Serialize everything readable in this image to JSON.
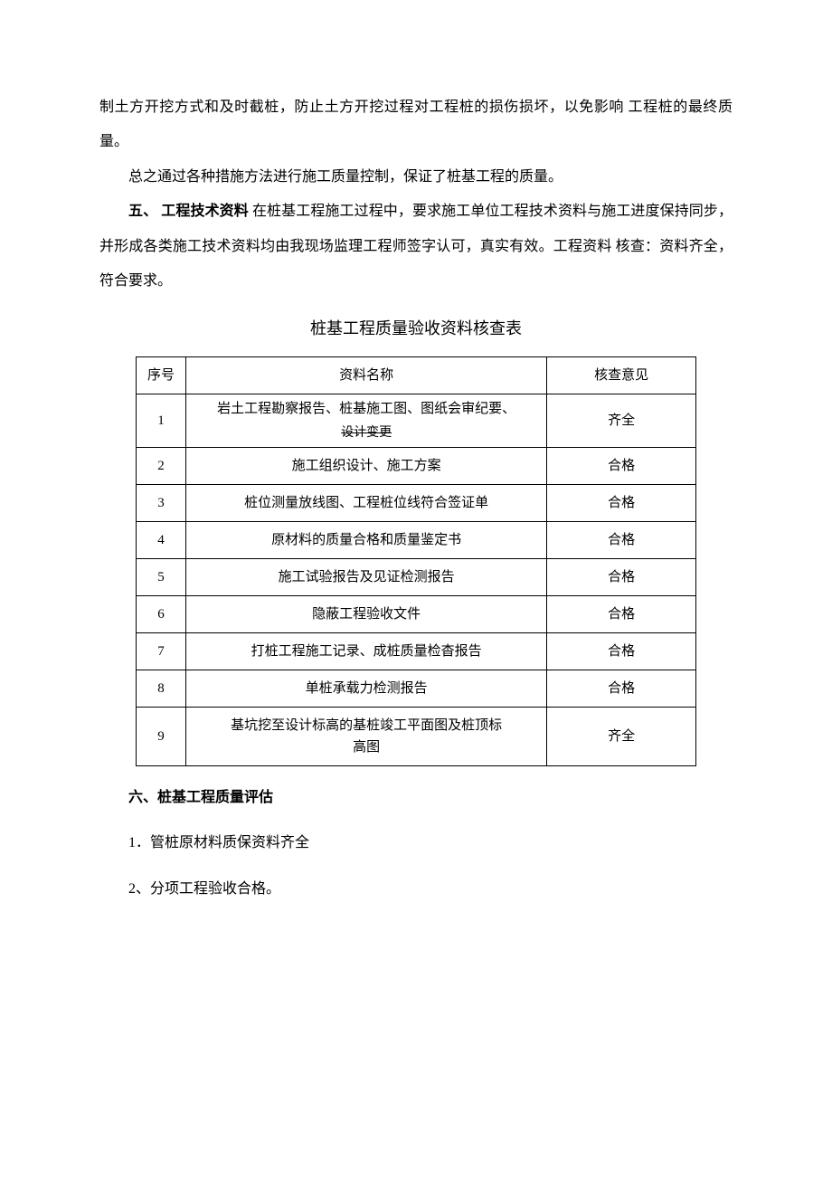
{
  "paragraphs": {
    "p1": "制土方开挖方式和及时截桩，防止土方开挖过程对工程桩的损伤损坏，以免影响 工程桩的最终质量。",
    "p2": "总之通过各种措施方法进行施工质量控制，保证了桩基工程的质量。",
    "p3_label": "五、  工程技术资料",
    "p3_rest": " 在桩基工程施工过程中，要求施工单位工程技术资料与施工进度保持同步， 并形成各类施工技术资料均由我现场监理工程师签字认可，真实有效。工程资料 核查：资料齐全，符合要求。"
  },
  "table": {
    "title": "桩基工程质量验收资料核查表",
    "headers": {
      "seq": "序号",
      "name": "资料名称",
      "opinion": "核查意见"
    },
    "rows": [
      {
        "seq": "1",
        "name_top": "岩土工程勘察报告、桩基施工图、图纸会审纪要、",
        "name_bottom": "设计变更",
        "opinion": "齐全"
      },
      {
        "seq": "2",
        "name": "施工组织设计、施工方案",
        "opinion": "合格"
      },
      {
        "seq": "3",
        "name": "桩位测量放线图、工程桩位线符合签证单",
        "opinion": "合格"
      },
      {
        "seq": "4",
        "name": "原材料的质量合格和质量鉴定书",
        "opinion": "合格"
      },
      {
        "seq": "5",
        "name": "施工试验报告及见证检测报告",
        "opinion": "合格"
      },
      {
        "seq": "6",
        "name": "隐蔽工程验收文件",
        "opinion": "合格"
      },
      {
        "seq": "7",
        "name": "打桩工程施工记录、成桩质量检杳报告",
        "opinion": "合格"
      },
      {
        "seq": "8",
        "name": "单桩承载力检测报告",
        "opinion": "合格"
      },
      {
        "seq": "9",
        "name_top": "基坑挖至设计标高的基桩竣工平面图及桩顶标",
        "name_bottom": "高图",
        "opinion": "齐全"
      }
    ]
  },
  "section6": {
    "heading": "六、桩基工程质量评估",
    "item1": "1．管桩原材料质保资料齐全",
    "item2": "2、分项工程验收合格。"
  },
  "colors": {
    "text": "#000000",
    "background": "#ffffff",
    "border": "#000000"
  }
}
